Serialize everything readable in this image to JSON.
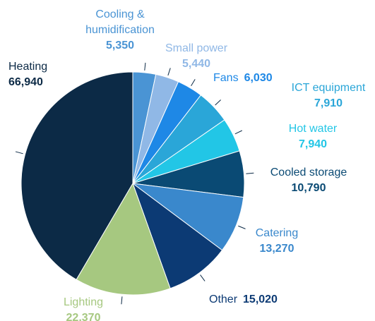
{
  "chart_data": {
    "type": "pie",
    "categories": [
      "Cooling & humidification",
      "Small power",
      "Fans",
      "ICT equipment",
      "Hot water",
      "Cooled storage",
      "Catering",
      "Other",
      "Lighting",
      "Heating"
    ],
    "values": [
      5350,
      5440,
      6030,
      7910,
      7940,
      10790,
      13270,
      15020,
      22370,
      66940
    ],
    "value_labels": [
      "5,350",
      "5,440",
      "6,030",
      "7,910",
      "7,940",
      "10,790",
      "13,270",
      "15,020",
      "22,370",
      "66,940"
    ],
    "colors": [
      "#4a94d4",
      "#90b8e6",
      "#1e88e6",
      "#2aa6d8",
      "#22c6e6",
      "#0a4a74",
      "#3a88cc",
      "#0c3a74",
      "#a6c880",
      "#0c2a46"
    ]
  }
}
